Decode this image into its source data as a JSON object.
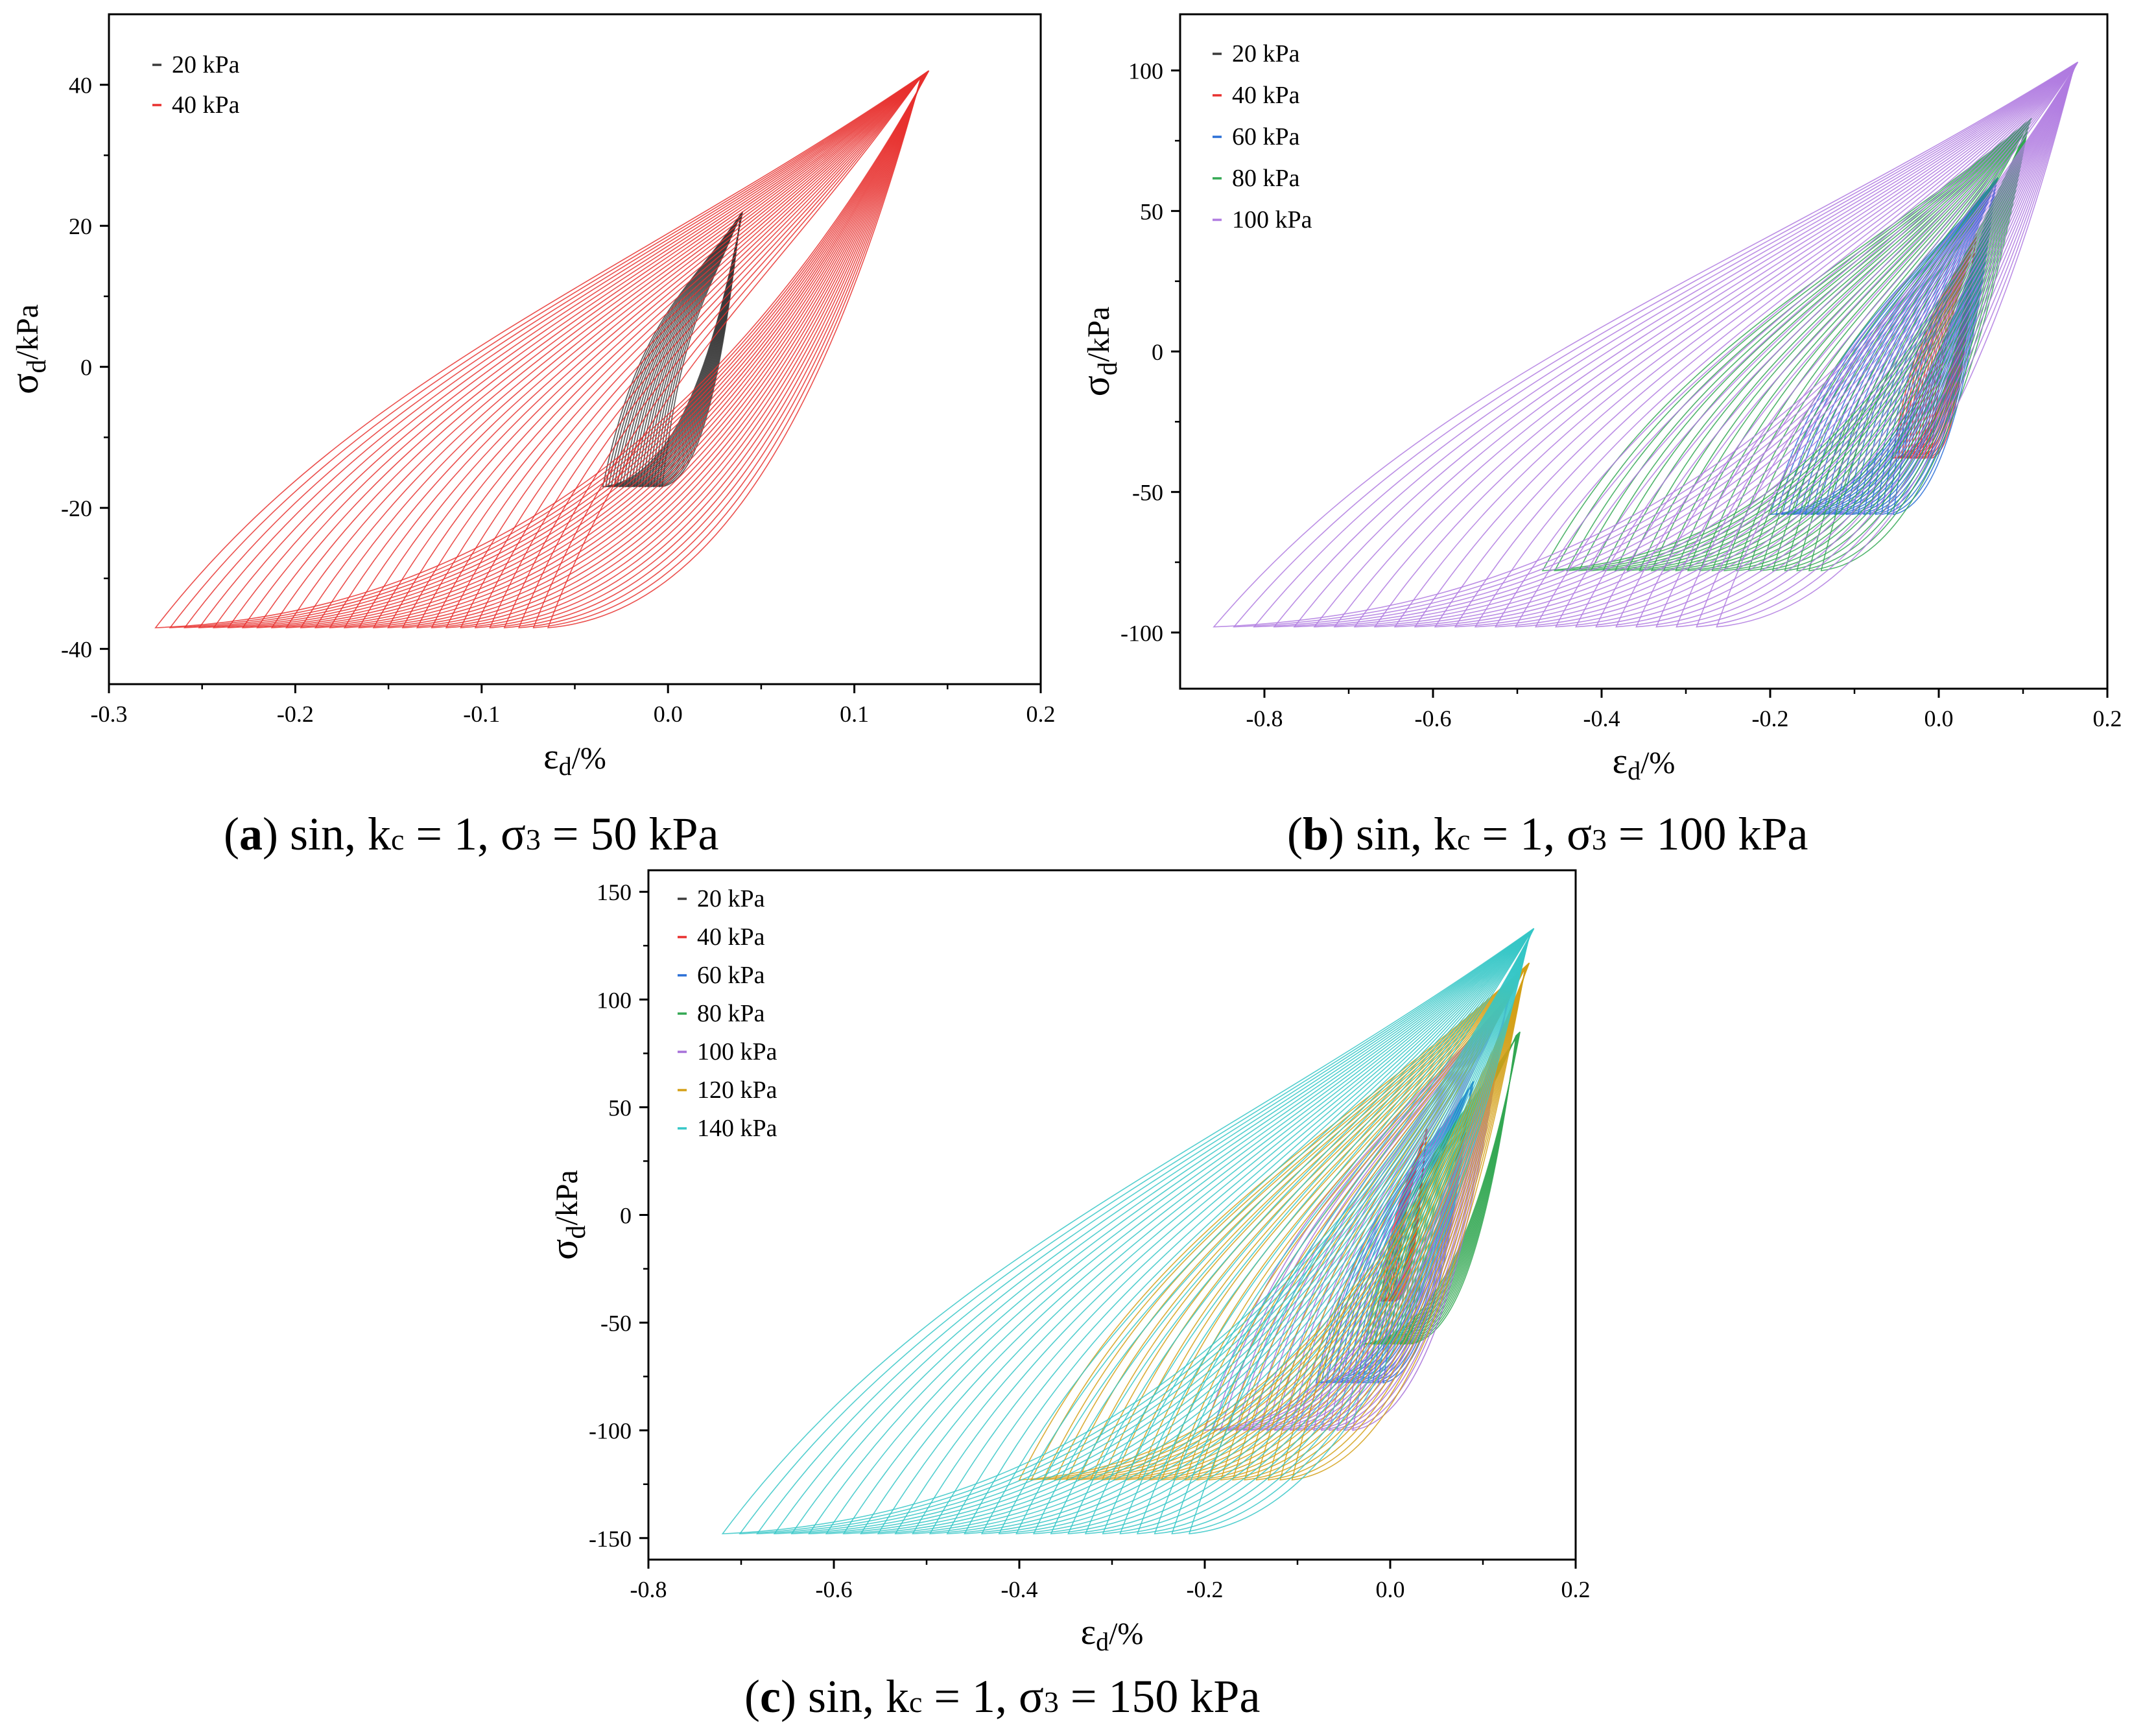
{
  "figure": {
    "panels": [
      {
        "id": "a",
        "caption": {
          "letter": "a",
          "text": "sin, k",
          "sub": "c",
          "rest1": " = 1,  σ",
          "sub2": "3",
          "rest2": " = 50 kPa"
        },
        "chart_data": {
          "type": "line",
          "title": "",
          "xlabel": "ε",
          "xlabel_sub": "d",
          "xlabel_unit": "/%",
          "ylabel": "σ",
          "ylabel_sub": "d",
          "ylabel_unit": "/kPa",
          "xlim": [
            -0.3,
            0.2
          ],
          "ylim": [
            -45,
            50
          ],
          "xticks": [
            -0.3,
            -0.2,
            -0.1,
            0.0,
            0.1,
            0.2
          ],
          "xtick_labels": [
            "-0.3",
            "-0.2",
            "-0.1",
            "0.0",
            "0.1",
            "0.2"
          ],
          "yticks": [
            -40,
            -20,
            0,
            20,
            40
          ],
          "ytick_labels": [
            "-40",
            "-20",
            "0",
            "20",
            "40"
          ],
          "grid": false,
          "legend_position": "top-left",
          "series": [
            {
              "name": "20 kPa",
              "color": "#3a3a3a",
              "loops": 22,
              "x_min": -0.035,
              "x_max": 0.04,
              "y_min": -17,
              "y_max": 22,
              "narrow": 0.18
            },
            {
              "name": "40 kPa",
              "color": "#e8312f",
              "loops": 28,
              "x_min": -0.275,
              "x_max": 0.14,
              "y_min": -37,
              "y_max": 42,
              "narrow": 1.0
            }
          ]
        }
      },
      {
        "id": "b",
        "caption": {
          "letter": "b",
          "text": "sin, k",
          "sub": "c",
          "rest1": " = 1, σ",
          "sub2": "3",
          "rest2": " = 100 kPa"
        },
        "chart_data": {
          "type": "line",
          "title": "",
          "xlabel": "ε",
          "xlabel_sub": "d",
          "xlabel_unit": "/%",
          "ylabel": "σ",
          "ylabel_sub": "d",
          "ylabel_unit": "/kPa",
          "xlim": [
            -0.9,
            0.2
          ],
          "ylim": [
            -120,
            120
          ],
          "xticks": [
            -0.8,
            -0.6,
            -0.4,
            -0.2,
            0.0,
            0.2
          ],
          "xtick_labels": [
            "-0.8",
            "-0.6",
            "-0.4",
            "-0.2",
            "0.0",
            "0.2"
          ],
          "yticks": [
            -100,
            -50,
            0,
            50,
            100
          ],
          "ytick_labels": [
            "-100",
            "-50",
            "0",
            "50",
            "100"
          ],
          "grid": false,
          "legend_position": "top-left",
          "series": [
            {
              "name": "20 kPa",
              "color": "#3a3a3a",
              "loops": 0,
              "x_min": 0,
              "x_max": 0,
              "y_min": 0,
              "y_max": 0,
              "narrow": 0.2
            },
            {
              "name": "40 kPa",
              "color": "#e8312f",
              "loops": 14,
              "x_min": -0.055,
              "x_max": 0.045,
              "y_min": -38,
              "y_max": 42,
              "narrow": 0.25
            },
            {
              "name": "60 kPa",
              "color": "#2a6fd6",
              "loops": 22,
              "x_min": -0.2,
              "x_max": 0.07,
              "y_min": -58,
              "y_max": 62,
              "narrow": 0.55
            },
            {
              "name": "80 kPa",
              "color": "#34a853",
              "loops": 24,
              "x_min": -0.47,
              "x_max": 0.11,
              "y_min": -78,
              "y_max": 83,
              "narrow": 0.8
            },
            {
              "name": "100 kPa",
              "color": "#b07be0",
              "loops": 26,
              "x_min": -0.86,
              "x_max": 0.165,
              "y_min": -98,
              "y_max": 103,
              "narrow": 1.0
            }
          ]
        }
      },
      {
        "id": "c",
        "caption": {
          "letter": "c",
          "text": "sin, k",
          "sub": "c",
          "rest1": " = 1,   σ",
          "sub2": "3",
          "rest2": " = 150 kPa"
        },
        "chart_data": {
          "type": "line",
          "title": "",
          "xlabel": "ε",
          "xlabel_sub": "d",
          "xlabel_unit": "/%",
          "ylabel": "σ",
          "ylabel_sub": "d",
          "ylabel_unit": "/kPa",
          "xlim": [
            -0.8,
            0.2
          ],
          "ylim": [
            -160,
            160
          ],
          "xticks": [
            -0.8,
            -0.6,
            -0.4,
            -0.2,
            0.0,
            0.2
          ],
          "xtick_labels": [
            "-0.8",
            "-0.6",
            "-0.4",
            "-0.2",
            "0.0",
            "0.2"
          ],
          "yticks": [
            -150,
            -100,
            -50,
            0,
            50,
            100,
            150
          ],
          "ytick_labels": [
            "-150",
            "-100",
            "-50",
            "0",
            "50",
            "100",
            "150"
          ],
          "grid": false,
          "legend_position": "top-left",
          "series": [
            {
              "name": "20 kPa",
              "color": "#3a3a3a",
              "loops": 0,
              "x_min": 0,
              "x_max": 0,
              "y_min": 0,
              "y_max": 0,
              "narrow": 0.2
            },
            {
              "name": "40 kPa",
              "color": "#e8312f",
              "loops": 10,
              "x_min": -0.01,
              "x_max": 0.04,
              "y_min": -40,
              "y_max": 40,
              "narrow": 0.3
            },
            {
              "name": "60 kPa",
              "color": "#2a6fd6",
              "loops": 14,
              "x_min": -0.08,
              "x_max": 0.09,
              "y_min": -78,
              "y_max": 62,
              "narrow": 0.4
            },
            {
              "name": "80 kPa",
              "color": "#34a853",
              "loops": 16,
              "x_min": -0.03,
              "x_max": 0.14,
              "y_min": -60,
              "y_max": 85,
              "narrow": 0.35
            },
            {
              "name": "100 kPa",
              "color": "#a771d9",
              "loops": 20,
              "x_min": -0.2,
              "x_max": 0.13,
              "y_min": -100,
              "y_max": 103,
              "narrow": 0.55
            },
            {
              "name": "120 kPa",
              "color": "#d4a017",
              "loops": 24,
              "x_min": -0.4,
              "x_max": 0.15,
              "y_min": -123,
              "y_max": 117,
              "narrow": 0.8
            },
            {
              "name": "140 kPa",
              "color": "#36c7c7",
              "loops": 28,
              "x_min": -0.72,
              "x_max": 0.155,
              "y_min": -148,
              "y_max": 133,
              "narrow": 1.0
            }
          ]
        }
      }
    ]
  }
}
